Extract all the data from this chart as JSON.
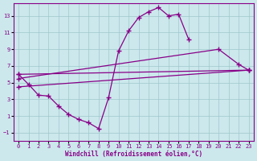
{
  "background_color": "#cce8ec",
  "grid_color": "#9ec8cc",
  "line_color": "#880088",
  "xlabel": "Windchill (Refroidissement éolien,°C)",
  "ylim": [
    -2,
    14.5
  ],
  "yticks": [
    -1,
    1,
    3,
    5,
    7,
    9,
    11,
    13
  ],
  "xticks": [
    0,
    1,
    2,
    3,
    4,
    5,
    6,
    7,
    8,
    9,
    10,
    11,
    12,
    13,
    14,
    15,
    16,
    17,
    18,
    19,
    20,
    21,
    22,
    23
  ],
  "hours": [
    0,
    1,
    2,
    3,
    4,
    5,
    6,
    7,
    8,
    9,
    10,
    11,
    12,
    13,
    14,
    15,
    16,
    17,
    18,
    19,
    20,
    21,
    22,
    23
  ],
  "curve1": [
    6.0,
    4.8,
    3.5,
    3.4,
    2.2,
    1.2,
    0.6,
    0.2,
    -0.5,
    3.2,
    8.8,
    11.2,
    12.8,
    13.5,
    14.0,
    13.0,
    13.2,
    10.2,
    null,
    null,
    null,
    null,
    null,
    null
  ],
  "curve2": [
    6.0,
    null,
    null,
    null,
    null,
    null,
    null,
    null,
    null,
    null,
    null,
    null,
    null,
    null,
    null,
    null,
    null,
    null,
    null,
    null,
    null,
    null,
    null,
    6.5
  ],
  "curve3": [
    5.5,
    null,
    null,
    null,
    null,
    null,
    null,
    null,
    null,
    null,
    null,
    null,
    null,
    null,
    null,
    null,
    null,
    null,
    null,
    null,
    9.0,
    null,
    7.2,
    6.5
  ],
  "curve4": [
    4.5,
    null,
    null,
    null,
    null,
    null,
    null,
    null,
    null,
    null,
    null,
    null,
    null,
    null,
    null,
    null,
    null,
    null,
    null,
    null,
    null,
    null,
    null,
    6.5
  ]
}
